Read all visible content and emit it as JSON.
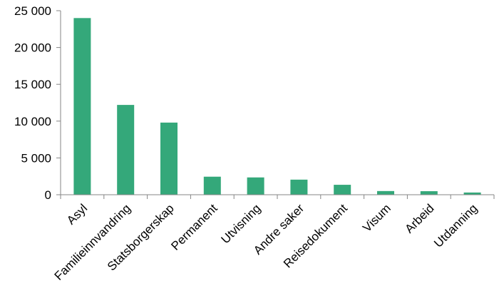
{
  "chart_data": {
    "type": "bar",
    "title": "",
    "xlabel": "",
    "ylabel": "",
    "ylim": [
      0,
      25000
    ],
    "yticks": [
      0,
      5000,
      10000,
      15000,
      20000,
      25000
    ],
    "ytick_labels": [
      "0",
      "5 000",
      "10 000",
      "15 000",
      "20 000",
      "25 000"
    ],
    "grid": false,
    "legend": "none",
    "bar_color": "#34a87a",
    "categories": [
      "Asyl",
      "Familieinnvandring",
      "Statsborgerskap",
      "Permanent",
      "Utvisning",
      "Andre saker",
      "Reisedokument",
      "Visum",
      "Arbeid",
      "Utdanning"
    ],
    "values": [
      24000,
      12200,
      9800,
      2450,
      2350,
      2050,
      1350,
      500,
      480,
      300
    ]
  }
}
